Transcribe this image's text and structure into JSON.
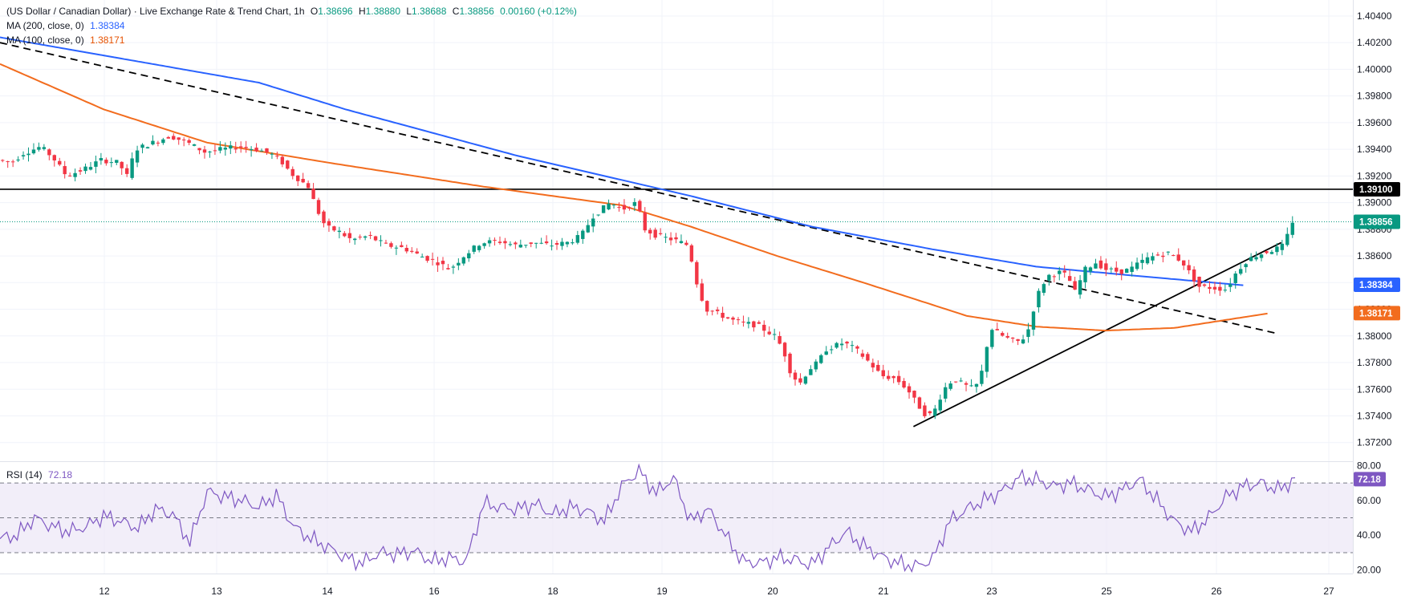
{
  "header": {
    "symbol_title": "(US Dollar / Canadian Dollar) · Live Exchange Rate & Trend Chart, 1h",
    "ohlc": {
      "o_label": "O",
      "o": "1.38696",
      "h_label": "H",
      "h": "1.38880",
      "l_label": "L",
      "l": "1.38688",
      "c_label": "C",
      "c": "1.38856",
      "change": "0.00160 (+0.12%)"
    },
    "ma200_label": "MA (200, close, 0)",
    "ma200_value": "1.38384",
    "ma100_label": "MA (100, close, 0)",
    "ma100_value": "1.38171",
    "rsi_label": "RSI (14)",
    "rsi_value": "72.18"
  },
  "colors": {
    "up": "#089981",
    "down": "#f23645",
    "ma200": "#2962ff",
    "ma100": "#f26c1e",
    "rsi": "#7e57c2",
    "rsi_band": "#ede7f6",
    "level_tag": "#000000",
    "grid": "#f0f3fa"
  },
  "chart_data": [
    {
      "type": "candlestick",
      "title": "(US Dollar / Canadian Dollar) · Live Exchange Rate & Trend Chart, 1h",
      "x_ticks": [
        "12",
        "13",
        "14",
        "16",
        "18",
        "19",
        "20",
        "21",
        "23",
        "25",
        "26",
        "27"
      ],
      "y_ticks": [
        "1.37200",
        "1.37400",
        "1.37600",
        "1.37800",
        "1.38000",
        "1.38200",
        "1.38400",
        "1.38600",
        "1.38800",
        "1.39000",
        "1.39200",
        "1.39400",
        "1.39600",
        "1.39800",
        "1.40000",
        "1.40200",
        "1.40400"
      ],
      "ylim": [
        1.3706,
        1.4052
      ],
      "price_anchors": [
        [
          0,
          1.3932
        ],
        [
          8,
          1.393
        ],
        [
          15,
          1.3937
        ],
        [
          25,
          1.3942
        ],
        [
          32,
          1.3934
        ],
        [
          40,
          1.392
        ],
        [
          50,
          1.3925
        ],
        [
          60,
          1.3932
        ],
        [
          70,
          1.393
        ],
        [
          75,
          1.392
        ],
        [
          80,
          1.394
        ],
        [
          90,
          1.3945
        ],
        [
          100,
          1.395
        ],
        [
          110,
          1.3945
        ],
        [
          120,
          1.3938
        ],
        [
          130,
          1.394
        ],
        [
          140,
          1.3942
        ],
        [
          150,
          1.394
        ],
        [
          158,
          1.3937
        ],
        [
          165,
          1.393
        ],
        [
          170,
          1.3922
        ],
        [
          180,
          1.3912
        ],
        [
          185,
          1.3895
        ],
        [
          190,
          1.3882
        ],
        [
          198,
          1.3878
        ],
        [
          205,
          1.3872
        ],
        [
          215,
          1.3875
        ],
        [
          225,
          1.3868
        ],
        [
          235,
          1.3866
        ],
        [
          245,
          1.386
        ],
        [
          255,
          1.3855
        ],
        [
          262,
          1.385
        ],
        [
          270,
          1.386
        ],
        [
          280,
          1.387
        ],
        [
          290,
          1.3871
        ],
        [
          300,
          1.3868
        ],
        [
          310,
          1.387
        ],
        [
          320,
          1.3868
        ],
        [
          330,
          1.387
        ],
        [
          338,
          1.3875
        ],
        [
          345,
          1.389
        ],
        [
          355,
          1.39
        ],
        [
          362,
          1.3895
        ],
        [
          370,
          1.39
        ],
        [
          375,
          1.388
        ],
        [
          382,
          1.3875
        ],
        [
          392,
          1.3872
        ],
        [
          400,
          1.3868
        ],
        [
          405,
          1.384
        ],
        [
          410,
          1.382
        ],
        [
          415,
          1.3818
        ],
        [
          425,
          1.3812
        ],
        [
          430,
          1.381
        ],
        [
          440,
          1.3808
        ],
        [
          450,
          1.38
        ],
        [
          455,
          1.379
        ],
        [
          460,
          1.377
        ],
        [
          465,
          1.3765
        ],
        [
          470,
          1.3775
        ],
        [
          475,
          1.378
        ],
        [
          480,
          1.379
        ],
        [
          490,
          1.3795
        ],
        [
          497,
          1.379
        ],
        [
          505,
          1.378
        ],
        [
          512,
          1.377
        ],
        [
          520,
          1.3768
        ],
        [
          527,
          1.376
        ],
        [
          532,
          1.375
        ],
        [
          538,
          1.374
        ],
        [
          542,
          1.3742
        ],
        [
          548,
          1.376
        ],
        [
          554,
          1.3768
        ],
        [
          560,
          1.3763
        ],
        [
          566,
          1.376
        ],
        [
          570,
          1.3773
        ],
        [
          575,
          1.3806
        ],
        [
          582,
          1.38
        ],
        [
          590,
          1.3795
        ],
        [
          596,
          1.38
        ],
        [
          602,
          1.383
        ],
        [
          608,
          1.3845
        ],
        [
          616,
          1.3848
        ],
        [
          620,
          1.3844
        ],
        [
          624,
          1.3833
        ],
        [
          630,
          1.385
        ],
        [
          636,
          1.3855
        ],
        [
          642,
          1.385
        ],
        [
          650,
          1.3848
        ],
        [
          656,
          1.385
        ],
        [
          664,
          1.3857
        ],
        [
          670,
          1.386
        ],
        [
          678,
          1.3862
        ],
        [
          686,
          1.3856
        ],
        [
          690,
          1.3848
        ],
        [
          696,
          1.3837
        ],
        [
          704,
          1.3836
        ],
        [
          712,
          1.3835
        ],
        [
          716,
          1.3845
        ],
        [
          722,
          1.3855
        ],
        [
          728,
          1.386
        ],
        [
          735,
          1.3863
        ],
        [
          740,
          1.3865
        ],
        [
          745,
          1.3868
        ],
        [
          750,
          1.3886
        ]
      ],
      "series": [
        {
          "name": "MA (200, close, 0)",
          "x": [
            0,
            150,
            200,
            300,
            400,
            470,
            540,
            600,
            650,
            720
          ],
          "values": [
            1.4024,
            1.399,
            1.397,
            1.3935,
            1.3905,
            1.3882,
            1.3865,
            1.3852,
            1.3846,
            1.3838
          ]
        },
        {
          "name": "MA (100, close, 0)",
          "x": [
            0,
            60,
            120,
            190,
            280,
            360,
            400,
            450,
            500,
            560,
            600,
            640,
            680,
            710,
            735
          ],
          "values": [
            1.4004,
            1.397,
            1.3945,
            1.393,
            1.3912,
            1.3898,
            1.3882,
            1.386,
            1.384,
            1.3815,
            1.3807,
            1.3804,
            1.3806,
            1.3812,
            1.3817
          ]
        }
      ],
      "trend_lines": [
        {
          "kind": "resistance",
          "style": "dashed",
          "x": [
            0,
            739
          ],
          "values": [
            1.402,
            1.3802
          ]
        },
        {
          "kind": "support",
          "style": "solid",
          "x": [
            529,
            742
          ],
          "values": [
            1.3732,
            1.387
          ]
        },
        {
          "kind": "horizontal",
          "style": "solid",
          "value": 1.391
        }
      ],
      "price_tags": [
        {
          "label": "1.39100",
          "value": 1.391,
          "color": "#000000"
        },
        {
          "label": "1.38856",
          "value": 1.38856,
          "color": "#089981"
        },
        {
          "label": "1.38384",
          "value": 1.38384,
          "color": "#2962ff"
        },
        {
          "label": "1.38171",
          "value": 1.38171,
          "color": "#f26c1e"
        }
      ],
      "last_price": 1.38856
    },
    {
      "type": "line",
      "title": "RSI (14)",
      "ylim": [
        18,
        82
      ],
      "y_ticks": [
        "20.00",
        "40.00",
        "60.00",
        "80.00"
      ],
      "levels": [
        70,
        50,
        30
      ],
      "x": [
        0,
        10,
        20,
        30,
        40,
        50,
        60,
        70,
        80,
        90,
        100,
        110,
        120,
        130,
        140,
        150,
        160,
        170,
        180,
        190,
        200,
        210,
        220,
        230,
        240,
        250,
        260,
        270,
        280,
        290,
        300,
        310,
        320,
        330,
        340,
        350,
        360,
        370,
        380,
        390,
        400,
        410,
        420,
        430,
        440,
        450,
        460,
        470,
        480,
        490,
        500,
        510,
        520,
        530,
        540,
        550,
        560,
        570,
        580,
        590,
        600,
        610,
        620,
        630,
        640,
        650,
        660,
        670,
        680,
        690,
        700,
        710,
        720,
        730,
        740,
        750
      ],
      "values": [
        38,
        40,
        50,
        45,
        42,
        45,
        51,
        48,
        44,
        55,
        52,
        36,
        65,
        62,
        60,
        56,
        63,
        45,
        38,
        33,
        27,
        24,
        30,
        29,
        31,
        25,
        27,
        25,
        58,
        56,
        55,
        58,
        52,
        56,
        54,
        48,
        68,
        77,
        64,
        73,
        48,
        55,
        40,
        25,
        24,
        27,
        26,
        23,
        33,
        42,
        34,
        28,
        24,
        22,
        26,
        48,
        55,
        60,
        65,
        73,
        72,
        68,
        70,
        66,
        62,
        66,
        72,
        60,
        48,
        42,
        50,
        62,
        68,
        70,
        66,
        72
      ],
      "value_tag": "72.18"
    }
  ]
}
